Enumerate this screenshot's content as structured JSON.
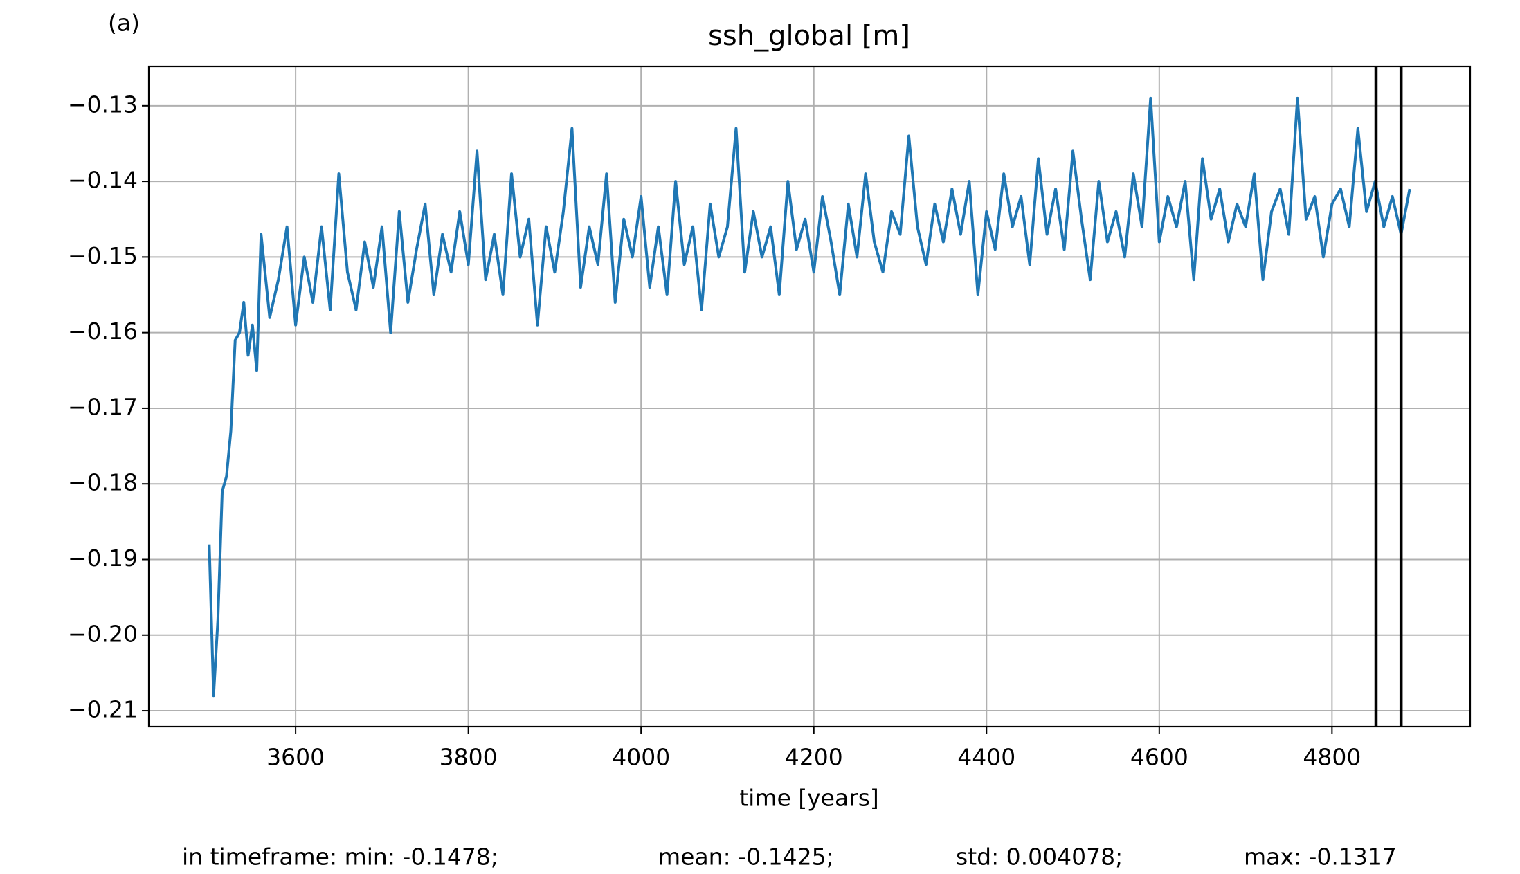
{
  "chart_data": {
    "type": "line",
    "panel_label": "(a)",
    "title": "ssh_global [m]",
    "x_label": "time [years]",
    "stats": [
      "in timeframe: min: -0.1478;",
      "mean: -0.1425;",
      "std: 0.004078;",
      "max: -0.1317"
    ],
    "x": [
      3500,
      3505,
      3510,
      3515,
      3520,
      3525,
      3530,
      3535,
      3540,
      3545,
      3550,
      3555,
      3560,
      3570,
      3580,
      3590,
      3600,
      3610,
      3620,
      3630,
      3640,
      3650,
      3660,
      3670,
      3680,
      3690,
      3700,
      3710,
      3720,
      3730,
      3740,
      3750,
      3760,
      3770,
      3780,
      3790,
      3800,
      3810,
      3820,
      3830,
      3840,
      3850,
      3860,
      3870,
      3880,
      3890,
      3900,
      3910,
      3920,
      3930,
      3940,
      3950,
      3960,
      3970,
      3980,
      3990,
      4000,
      4010,
      4020,
      4030,
      4040,
      4050,
      4060,
      4070,
      4080,
      4090,
      4100,
      4110,
      4120,
      4130,
      4140,
      4150,
      4160,
      4170,
      4180,
      4190,
      4200,
      4210,
      4220,
      4230,
      4240,
      4250,
      4260,
      4270,
      4280,
      4290,
      4300,
      4310,
      4320,
      4330,
      4340,
      4350,
      4360,
      4370,
      4380,
      4390,
      4400,
      4410,
      4420,
      4430,
      4440,
      4450,
      4460,
      4470,
      4480,
      4490,
      4500,
      4510,
      4520,
      4530,
      4540,
      4550,
      4560,
      4570,
      4580,
      4590,
      4600,
      4610,
      4620,
      4630,
      4640,
      4650,
      4660,
      4670,
      4680,
      4690,
      4700,
      4710,
      4720,
      4730,
      4740,
      4750,
      4760,
      4770,
      4780,
      4790,
      4800,
      4810,
      4820,
      4830,
      4840,
      4850,
      4860,
      4870,
      4880,
      4890
    ],
    "series": [
      {
        "name": "ssh_global",
        "color": "#1f77b4",
        "values": [
          -0.188,
          -0.208,
          -0.198,
          -0.181,
          -0.179,
          -0.173,
          -0.161,
          -0.16,
          -0.156,
          -0.163,
          -0.159,
          -0.165,
          -0.147,
          -0.158,
          -0.153,
          -0.146,
          -0.159,
          -0.15,
          -0.156,
          -0.146,
          -0.157,
          -0.139,
          -0.152,
          -0.157,
          -0.148,
          -0.154,
          -0.146,
          -0.16,
          -0.144,
          -0.156,
          -0.149,
          -0.143,
          -0.155,
          -0.147,
          -0.152,
          -0.144,
          -0.151,
          -0.136,
          -0.153,
          -0.147,
          -0.155,
          -0.139,
          -0.15,
          -0.145,
          -0.159,
          -0.146,
          -0.152,
          -0.144,
          -0.133,
          -0.154,
          -0.146,
          -0.151,
          -0.139,
          -0.156,
          -0.145,
          -0.15,
          -0.142,
          -0.154,
          -0.146,
          -0.155,
          -0.14,
          -0.151,
          -0.146,
          -0.157,
          -0.143,
          -0.15,
          -0.146,
          -0.133,
          -0.152,
          -0.144,
          -0.15,
          -0.146,
          -0.155,
          -0.14,
          -0.149,
          -0.145,
          -0.152,
          -0.142,
          -0.148,
          -0.155,
          -0.143,
          -0.15,
          -0.139,
          -0.148,
          -0.152,
          -0.144,
          -0.147,
          -0.134,
          -0.146,
          -0.151,
          -0.143,
          -0.148,
          -0.141,
          -0.147,
          -0.14,
          -0.155,
          -0.144,
          -0.149,
          -0.139,
          -0.146,
          -0.142,
          -0.151,
          -0.137,
          -0.147,
          -0.141,
          -0.149,
          -0.136,
          -0.145,
          -0.153,
          -0.14,
          -0.148,
          -0.144,
          -0.15,
          -0.139,
          -0.146,
          -0.129,
          -0.148,
          -0.142,
          -0.146,
          -0.14,
          -0.153,
          -0.137,
          -0.145,
          -0.141,
          -0.148,
          -0.143,
          -0.146,
          -0.139,
          -0.153,
          -0.144,
          -0.141,
          -0.147,
          -0.129,
          -0.145,
          -0.142,
          -0.15,
          -0.143,
          -0.141,
          -0.146,
          -0.133,
          -0.144,
          -0.14,
          -0.146,
          -0.142,
          -0.147,
          -0.141
        ]
      }
    ],
    "vlines": [
      4851,
      4880
    ],
    "vline_color": "#000000",
    "xlim": [
      3430,
      4960
    ],
    "ylim": [
      -0.2121,
      -0.1248
    ],
    "xticks": [
      3600,
      3800,
      4000,
      4200,
      4400,
      4600,
      4800
    ],
    "yticks": [
      {
        "value": -0.13,
        "label": "−0.13"
      },
      {
        "value": -0.14,
        "label": "−0.14"
      },
      {
        "value": -0.15,
        "label": "−0.15"
      },
      {
        "value": -0.16,
        "label": "−0.16"
      },
      {
        "value": -0.17,
        "label": "−0.17"
      },
      {
        "value": -0.18,
        "label": "−0.18"
      },
      {
        "value": -0.19,
        "label": "−0.19"
      },
      {
        "value": -0.2,
        "label": "−0.20"
      },
      {
        "value": -0.21,
        "label": "−0.21"
      }
    ],
    "grid": true
  }
}
